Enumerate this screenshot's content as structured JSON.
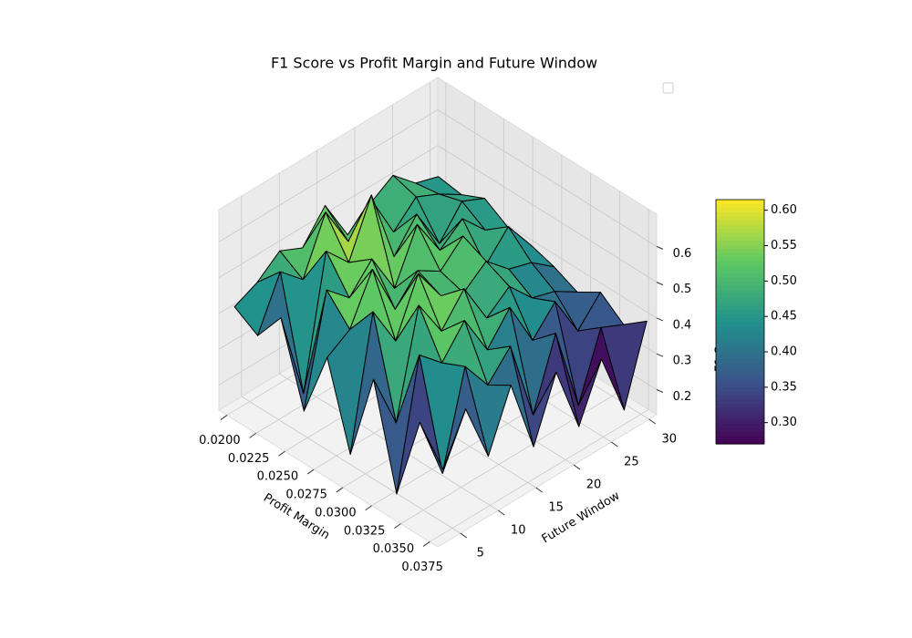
{
  "chart_data": {
    "type": "surface3d",
    "title": "F1 Score vs Profit Margin and Future Window",
    "xlabel": "Profit Margin",
    "ylabel": "Future Window",
    "zlabel": "F1 Score",
    "x": [
      0.02,
      0.022,
      0.024,
      0.026,
      0.028,
      0.03,
      0.032,
      0.034,
      0.036,
      0.038
    ],
    "y": [
      3,
      6,
      9,
      12,
      15,
      18,
      21,
      24,
      27,
      30
    ],
    "z": [
      [
        0.42,
        0.45,
        0.5,
        0.47,
        0.55,
        0.43,
        0.48,
        0.52,
        0.46,
        0.44
      ],
      [
        0.38,
        0.52,
        0.46,
        0.61,
        0.49,
        0.57,
        0.44,
        0.5,
        0.47,
        0.43
      ],
      [
        0.47,
        0.22,
        0.58,
        0.51,
        0.66,
        0.45,
        0.53,
        0.41,
        0.49,
        0.46
      ],
      [
        0.25,
        0.55,
        0.49,
        0.56,
        0.44,
        0.58,
        0.47,
        0.52,
        0.45,
        0.42
      ],
      [
        0.44,
        0.48,
        0.61,
        0.46,
        0.53,
        0.49,
        0.55,
        0.43,
        0.5,
        0.41
      ],
      [
        0.21,
        0.57,
        0.45,
        0.6,
        0.5,
        0.47,
        0.52,
        0.46,
        0.44,
        0.39
      ],
      [
        0.46,
        0.3,
        0.59,
        0.48,
        0.56,
        0.44,
        0.49,
        0.42,
        0.4,
        0.36
      ],
      [
        0.18,
        0.53,
        0.47,
        0.55,
        0.43,
        0.51,
        0.38,
        0.45,
        0.33,
        0.4
      ],
      [
        0.42,
        0.24,
        0.5,
        0.41,
        0.48,
        0.25,
        0.44,
        0.2,
        0.38,
        0.35
      ],
      [
        0.33,
        0.46,
        0.29,
        0.45,
        0.24,
        0.41,
        0.22,
        0.37,
        0.19,
        0.4
      ]
    ],
    "xlim": [
      0.0193,
      0.0382
    ],
    "ylim": [
      2,
      31
    ],
    "zlim": [
      0.13,
      0.69
    ],
    "xticks": [
      {
        "value": 0.02,
        "label": "0.0200"
      },
      {
        "value": 0.0225,
        "label": "0.0225"
      },
      {
        "value": 0.025,
        "label": "0.0250"
      },
      {
        "value": 0.0275,
        "label": "0.0275"
      },
      {
        "value": 0.03,
        "label": "0.0300"
      },
      {
        "value": 0.0325,
        "label": "0.0325"
      },
      {
        "value": 0.035,
        "label": "0.0350"
      },
      {
        "value": 0.0375,
        "label": "0.0375"
      }
    ],
    "yticks": [
      5,
      10,
      15,
      20,
      25,
      30
    ],
    "zticks": [
      0.2,
      0.3,
      0.4,
      0.5,
      0.6
    ],
    "colormap": "viridis",
    "edgecolor": "#000000",
    "clim": [
      0.27,
      0.615
    ],
    "cticks": [
      {
        "value": 0.3,
        "label": "0.30"
      },
      {
        "value": 0.35,
        "label": "0.35"
      },
      {
        "value": 0.4,
        "label": "0.40"
      },
      {
        "value": 0.45,
        "label": "0.45"
      },
      {
        "value": 0.5,
        "label": "0.50"
      },
      {
        "value": 0.55,
        "label": "0.55"
      },
      {
        "value": 0.6,
        "label": "0.60"
      }
    ],
    "grid": true
  }
}
